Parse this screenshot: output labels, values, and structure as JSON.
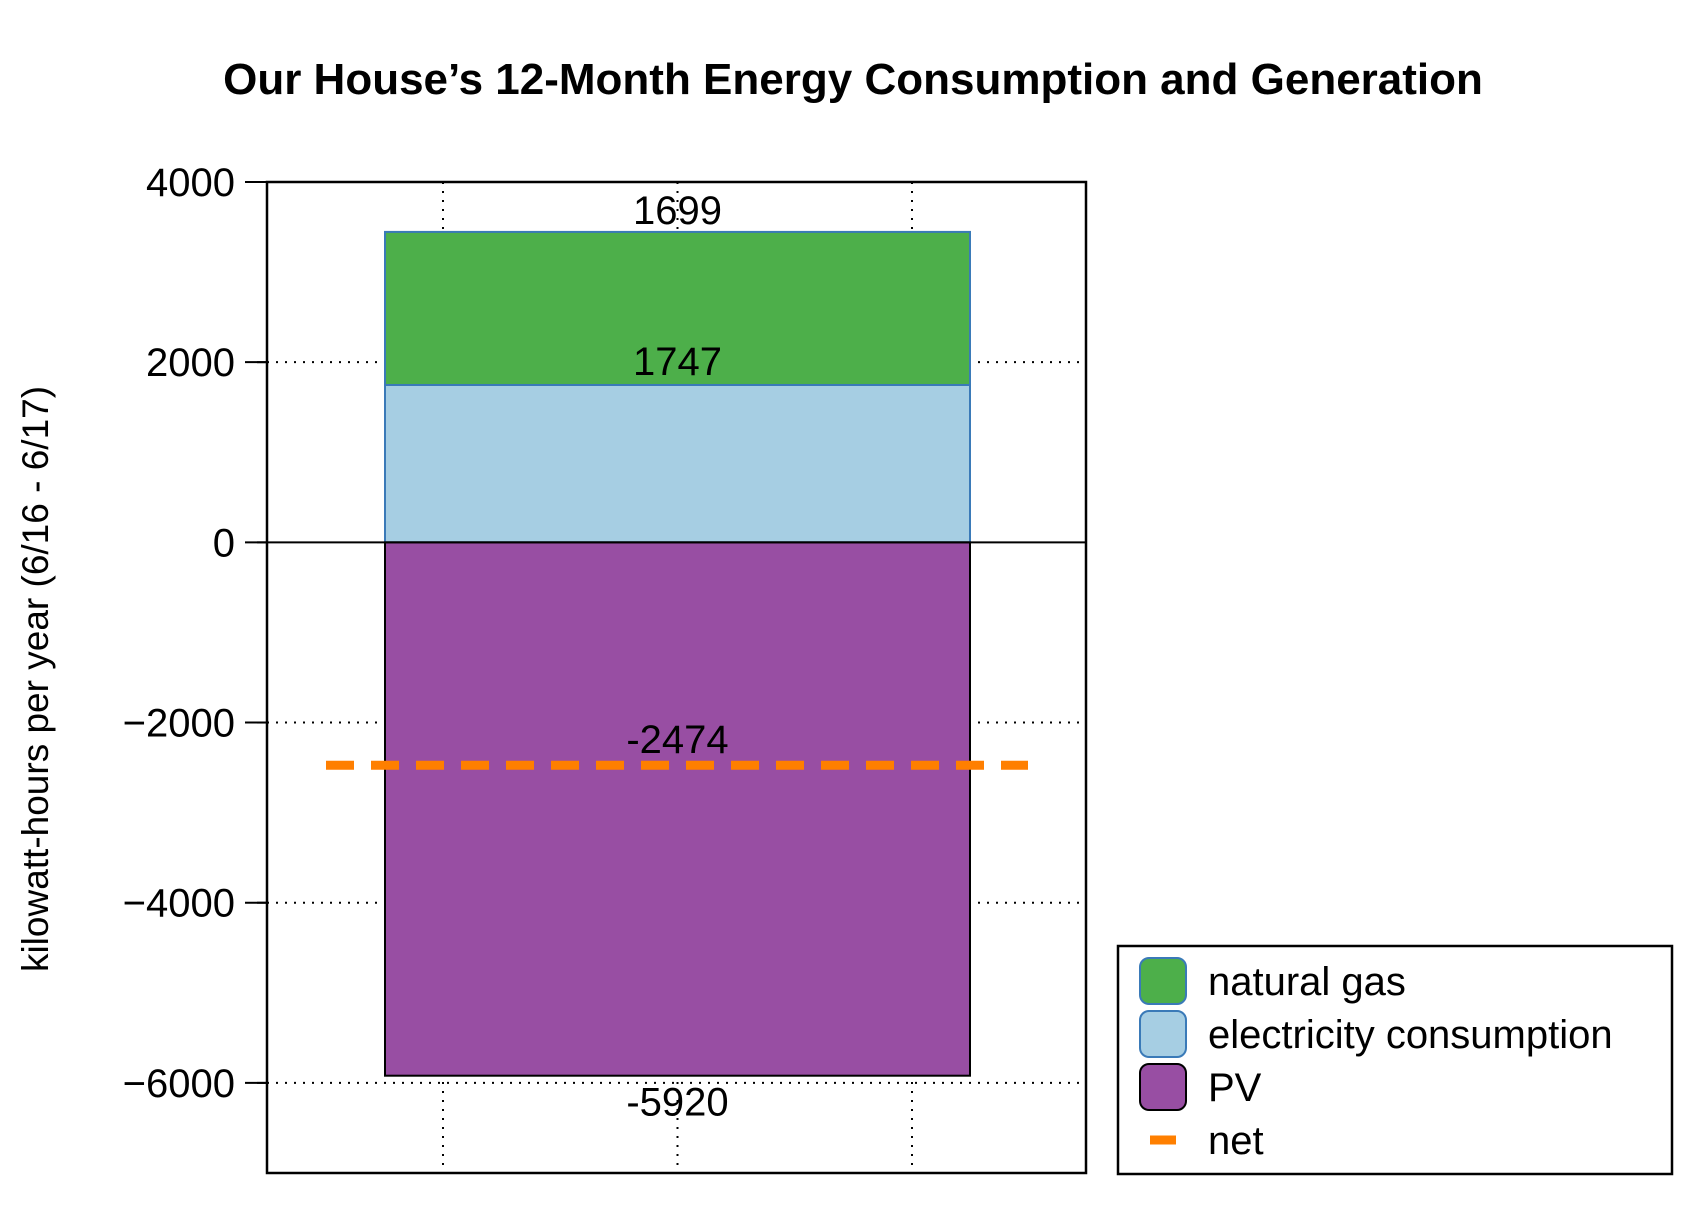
{
  "chart_data": {
    "type": "bar",
    "stacked": true,
    "title": "Our House’s 12-Month Energy Consumption and Generation",
    "xlabel": "",
    "ylabel": "kilowatt-hours per year (6/16 - 6/17)",
    "ylim": [
      -7000,
      4000
    ],
    "yticks": [
      4000,
      2000,
      0,
      -2000,
      -4000,
      -6000
    ],
    "ytick_labels": [
      "4000",
      "2000",
      "0",
      "−2000",
      "−4000",
      "−6000"
    ],
    "grid": "dotted",
    "legend_position": "bottom-right",
    "series": [
      {
        "name": "electricity consumption",
        "value": 1747,
        "base": 0,
        "color": "#a6cee3",
        "label": "1747"
      },
      {
        "name": "natural gas",
        "value": 1699,
        "base": 1747,
        "color": "#4daf4a",
        "label": "1699"
      },
      {
        "name": "PV",
        "value": -5920,
        "base": 0,
        "color": "#984ea3",
        "label": "-5920"
      }
    ],
    "net": {
      "name": "net",
      "value": -2474,
      "color": "#ff7f00",
      "label": "-2474"
    },
    "legend": [
      {
        "name": "natural gas",
        "color": "#4daf4a",
        "kind": "patch"
      },
      {
        "name": "electricity consumption",
        "color": "#a6cee3",
        "kind": "patch"
      },
      {
        "name": "PV",
        "color": "#984ea3",
        "kind": "patch"
      },
      {
        "name": "net",
        "color": "#ff7f00",
        "kind": "line"
      }
    ]
  }
}
